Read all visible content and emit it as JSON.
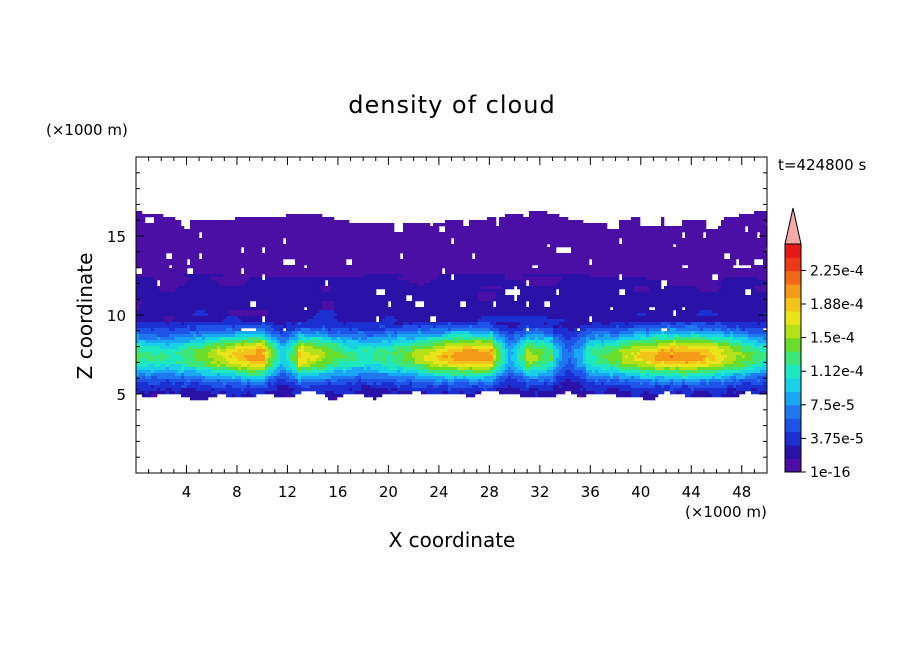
{
  "chart_data": {
    "type": "heatmap",
    "title": "density of cloud",
    "xlabel": "X coordinate",
    "ylabel": "Z coordinate",
    "x_unit": "(×1000 m)",
    "y_unit": "(×1000 m)",
    "time_label": "t=424800 s",
    "xlim": [
      0,
      50
    ],
    "ylim": [
      0,
      20
    ],
    "x_ticks": [
      4,
      8,
      12,
      16,
      20,
      24,
      28,
      32,
      36,
      40,
      44,
      48
    ],
    "y_ticks": [
      5,
      10,
      15
    ],
    "colorbar": {
      "labels": [
        "1e-16",
        "3.75e-5",
        "7.5e-5",
        "1.12e-4",
        "1.5e-4",
        "1.88e-4",
        "2.25e-4"
      ],
      "colors": [
        "#4b0fa5",
        "#2a12a8",
        "#1c2fd1",
        "#1f52e6",
        "#1f78f0",
        "#1aa6f2",
        "#18d1e6",
        "#1ee8c0",
        "#3de67a",
        "#6adc2a",
        "#b4e018",
        "#e8e61a",
        "#f2c41a",
        "#f49a18",
        "#f06818",
        "#e83a18",
        "#e61818"
      ],
      "overflow_color": "#f5a8a8"
    },
    "profile": {
      "z_bottom": 5.0,
      "z_top": 16.8,
      "max_density_core_z": 7.5,
      "peak_value": 0.0002
    }
  }
}
